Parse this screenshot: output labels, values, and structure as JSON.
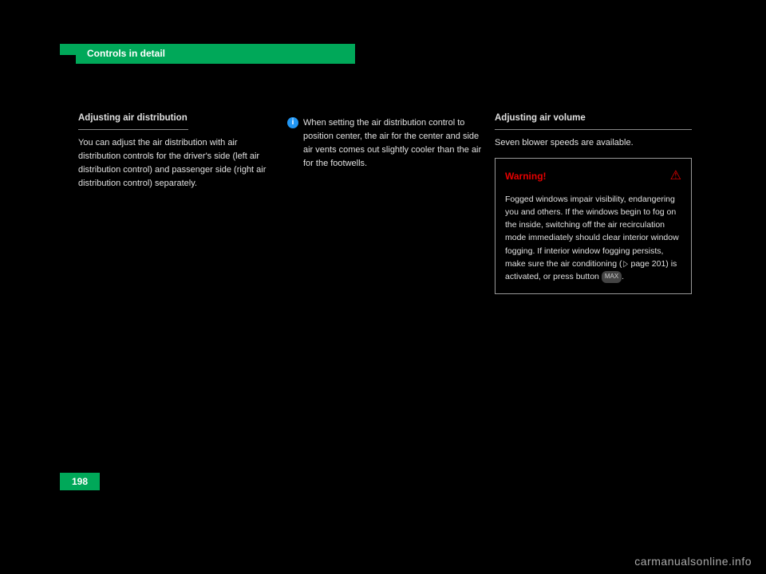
{
  "header": {
    "title": "Controls in detail"
  },
  "col1": {
    "heading": "Adjusting air distribution",
    "p1": "You can adjust the air distribution with air distribution controls for the driver's side (left air distribution control) and passenger side (right air distribution control) separately."
  },
  "col2": {
    "info": "When setting the air distribution control to position center, the air for the center and side air vents comes out slightly cooler than the air for the footwells."
  },
  "col3": {
    "heading": "Adjusting air volume",
    "p1": "Seven blower speeds are available.",
    "warning": {
      "title": "Warning!",
      "content_1": "Fogged windows impair visibility, endangering you and others. If the windows begin to fog on the inside, switching off the air recirculation mode immediately should clear interior window fogging. If interior window fogging persists, make sure the air conditioning (",
      "page_ref": "page 201",
      "content_2": ") is activated, or press button ",
      "button_label": "MAX",
      "content_3": "."
    }
  },
  "footer": {
    "page_number": "198",
    "watermark": "carmanualsonline.info"
  },
  "styles": {
    "accent_color": "#00a859",
    "warning_color": "#e60000",
    "info_icon_color": "#2196f3",
    "background": "#000000"
  }
}
